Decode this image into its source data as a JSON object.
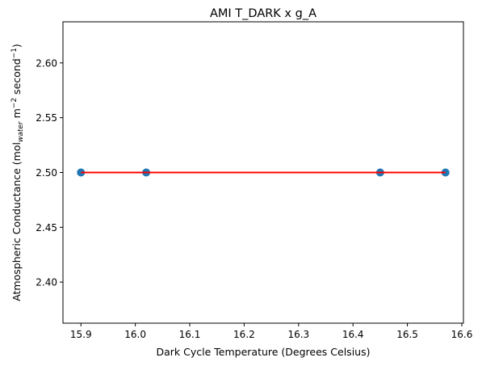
{
  "chart_data": {
    "type": "scatter",
    "title": "AMI T_DARK x g_A",
    "xlabel": "Dark Cycle Temperature (Degrees Celsius)",
    "ylabel": {
      "main": "Atmospheric Conductance (mol",
      "sub": "water",
      "mid": " m",
      "sup1": "−2",
      "mid2": " second",
      "sup2": "−1",
      "end": ")"
    },
    "xlim": [
      15.867,
      16.603
    ],
    "ylim": [
      2.3625,
      2.6375
    ],
    "xticks": [
      15.9,
      16.0,
      16.1,
      16.2,
      16.3,
      16.4,
      16.5,
      16.6
    ],
    "xtick_labels": [
      "15.9",
      "16.0",
      "16.1",
      "16.2",
      "16.3",
      "16.4",
      "16.5",
      "16.6"
    ],
    "yticks": [
      2.4,
      2.45,
      2.5,
      2.55,
      2.6
    ],
    "ytick_labels": [
      "2.40",
      "2.45",
      "2.50",
      "2.55",
      "2.60"
    ],
    "grid": false,
    "series": [
      {
        "kind": "scatter",
        "color": "#1f77b4",
        "points": [
          {
            "x": 15.9,
            "y": 2.5
          },
          {
            "x": 16.02,
            "y": 2.5
          },
          {
            "x": 16.45,
            "y": 2.5
          },
          {
            "x": 16.57,
            "y": 2.5
          }
        ]
      },
      {
        "kind": "line",
        "color": "#ff0000",
        "points": [
          {
            "x": 15.9,
            "y": 2.5
          },
          {
            "x": 16.57,
            "y": 2.5
          }
        ]
      }
    ]
  }
}
